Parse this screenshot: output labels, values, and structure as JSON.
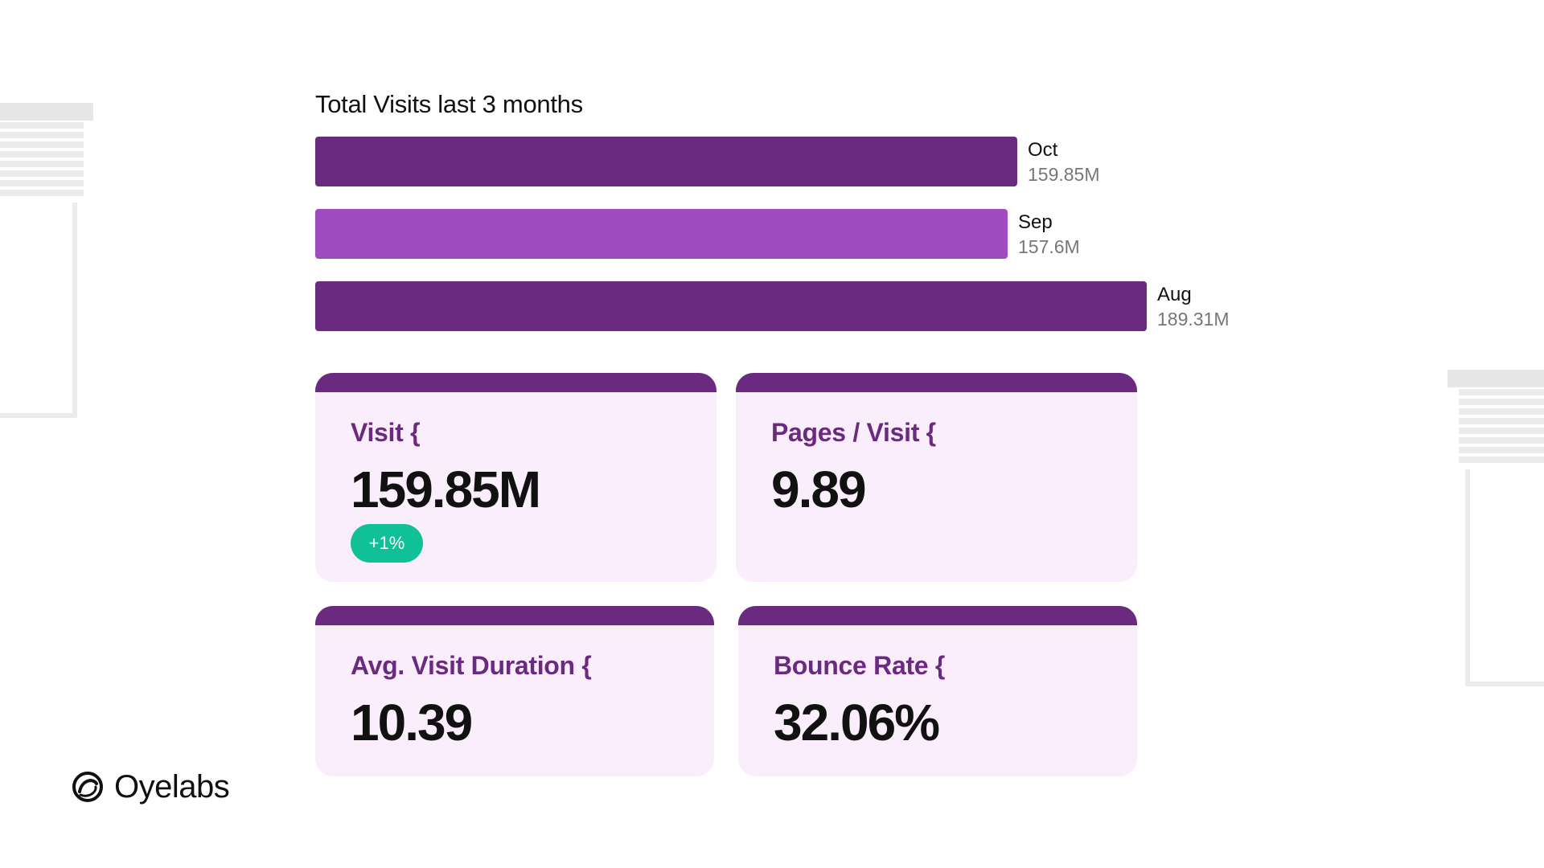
{
  "colors": {
    "bar_primary": "#6a2a80",
    "bar_secondary": "#9e4cc0",
    "card_bg": "#fbeefc",
    "card_cap": "#6a2a80",
    "badge_bg": "#10c197"
  },
  "chart_data": {
    "type": "bar",
    "orientation": "horizontal",
    "title": "Total Visits last 3 months",
    "categories": [
      "Oct",
      "Sep",
      "Aug"
    ],
    "values": [
      159.85,
      157.6,
      189.31
    ],
    "value_labels": [
      "159.85M",
      "157.6M",
      "189.31M"
    ],
    "unit": "M",
    "xlim": [
      0,
      189.31
    ],
    "grid": false
  },
  "metrics": {
    "visit": {
      "label": "Visit {",
      "value": "159.85M",
      "change": "+1%"
    },
    "pages_per_visit": {
      "label": "Pages / Visit {",
      "value": "9.89"
    },
    "avg_visit_duration": {
      "label": "Avg. Visit Duration {",
      "value": "10.39"
    },
    "bounce_rate": {
      "label": "Bounce Rate {",
      "value": "32.06%"
    }
  },
  "brand": {
    "name": "Oyelabs",
    "logo_icon": "oyelabs-logo-icon"
  }
}
